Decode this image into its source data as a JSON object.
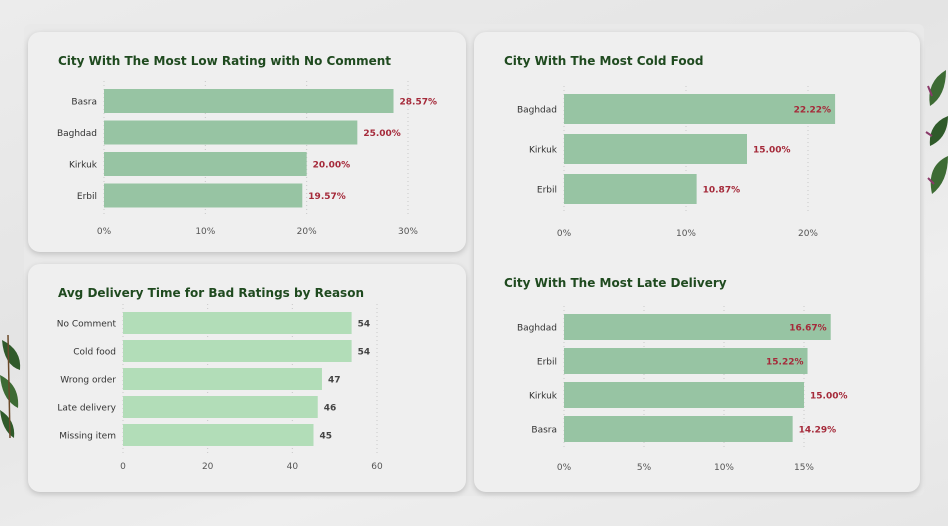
{
  "colors": {
    "bar": "#97c4a3",
    "bar_light": "#b2ddb8",
    "value_red": "#a52a3a",
    "value_dark": "#444444",
    "title": "#1f4a1f",
    "grid": "#c8c8c8",
    "axis_text": "#555555"
  },
  "chart_data": [
    {
      "id": "low-rating",
      "type": "bar",
      "orientation": "horizontal",
      "title": "City With The Most Low Rating with No Comment",
      "categories": [
        "Basra",
        "Baghdad",
        "Kirkuk",
        "Erbil"
      ],
      "values": [
        28.57,
        25.0,
        20.0,
        19.57
      ],
      "value_labels": [
        "28.57%",
        "25.00%",
        "20.00%",
        "19.57%"
      ],
      "xlim": [
        0,
        30
      ],
      "ticks": [
        0,
        10,
        20,
        30
      ],
      "tick_labels": [
        "0%",
        "10%",
        "20%",
        "30%"
      ],
      "grid": true
    },
    {
      "id": "delivery-time",
      "type": "bar",
      "orientation": "horizontal",
      "title": "Avg Delivery Time for Bad Ratings by Reason",
      "categories": [
        "No Comment",
        "Cold food",
        "Wrong order",
        "Late delivery",
        "Missing item"
      ],
      "values": [
        54,
        54,
        47,
        46,
        45
      ],
      "value_labels": [
        "54",
        "54",
        "47",
        "46",
        "45"
      ],
      "xlim": [
        0,
        60
      ],
      "ticks": [
        0,
        20,
        40,
        60
      ],
      "tick_labels": [
        "0",
        "20",
        "40",
        "60"
      ],
      "grid": true
    },
    {
      "id": "cold-food",
      "type": "bar",
      "orientation": "horizontal",
      "title": "City With The Most Cold Food",
      "categories": [
        "Baghdad",
        "Kirkuk",
        "Erbil"
      ],
      "values": [
        22.22,
        15.0,
        10.87
      ],
      "value_labels": [
        "22.22%",
        "15.00%",
        "10.87%"
      ],
      "xlim": [
        0,
        20
      ],
      "ticks": [
        0,
        10,
        20
      ],
      "tick_labels": [
        "0%",
        "10%",
        "20%"
      ],
      "grid": true
    },
    {
      "id": "late-delivery",
      "type": "bar",
      "orientation": "horizontal",
      "title": "City With The Most Late Delivery",
      "categories": [
        "Baghdad",
        "Erbil",
        "Kirkuk",
        "Basra"
      ],
      "values": [
        16.67,
        15.22,
        15.0,
        14.29
      ],
      "value_labels": [
        "16.67%",
        "15.22%",
        "15.00%",
        "14.29%"
      ],
      "xlim": [
        0,
        15
      ],
      "ticks": [
        0,
        5,
        10,
        15
      ],
      "tick_labels": [
        "0%",
        "5%",
        "10%",
        "15%"
      ],
      "grid": true
    }
  ]
}
